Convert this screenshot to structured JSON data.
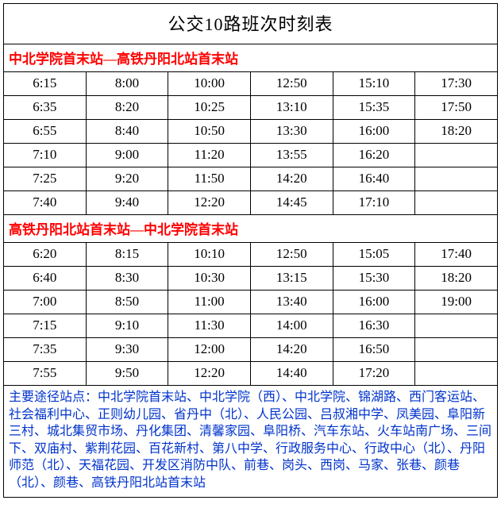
{
  "title": "公交10路班次时刻表",
  "direction_a": "中北学院首末站—高铁丹阳北站首末站",
  "direction_b": "高铁丹阳北站首末站—中北学院首末站",
  "table_a": [
    [
      "6:15",
      "8:00",
      "10:00",
      "12:50",
      "15:10",
      "17:30"
    ],
    [
      "6:35",
      "8:20",
      "10:25",
      "13:10",
      "15:35",
      "17:50"
    ],
    [
      "6:55",
      "8:40",
      "10:50",
      "13:30",
      "16:00",
      "18:20"
    ],
    [
      "7:10",
      "9:00",
      "11:20",
      "13:55",
      "16:20",
      ""
    ],
    [
      "7:25",
      "9:20",
      "11:50",
      "14:20",
      "16:40",
      ""
    ],
    [
      "7:40",
      "9:40",
      "12:20",
      "14:45",
      "17:10",
      ""
    ]
  ],
  "table_b": [
    [
      "6:20",
      "8:15",
      "10:10",
      "12:50",
      "15:05",
      "17:40"
    ],
    [
      "6:40",
      "8:30",
      "10:30",
      "13:15",
      "15:30",
      "18:20"
    ],
    [
      "7:00",
      "8:50",
      "11:00",
      "13:40",
      "16:00",
      "19:00"
    ],
    [
      "7:15",
      "9:10",
      "11:30",
      "14:00",
      "16:30",
      ""
    ],
    [
      "7:35",
      "9:30",
      "12:00",
      "14:20",
      "16:50",
      ""
    ],
    [
      "7:55",
      "9:50",
      "12:20",
      "14:40",
      "17:20",
      ""
    ]
  ],
  "stops_label": "主要途径站点：",
  "stops_text": "中北学院首末站、中北学院（西）、中北学院、锦湖路、西门客运站、社会福利中心、正则幼儿园、省丹中（北）、人民公园、吕叔湘中学、凤美园、阜阳新三村、城北集贸市场、丹化集团、清馨家园、阜阳桥、汽车东站、火车站南广场、三间下、双庙村、紫荆花园、百花新村、第八中学、行政服务中心、行政中心（北）、丹阳师范（北）、天福花园、开发区消防中队、前巷、岗头、西岗、马家、张巷、颜巷（北）、颜巷、高铁丹阳北站首末站",
  "colors": {
    "border": "#000000",
    "direction_text": "#ff0000",
    "stops_text": "#0033cc",
    "background": "#ffffff"
  },
  "columns": 6
}
